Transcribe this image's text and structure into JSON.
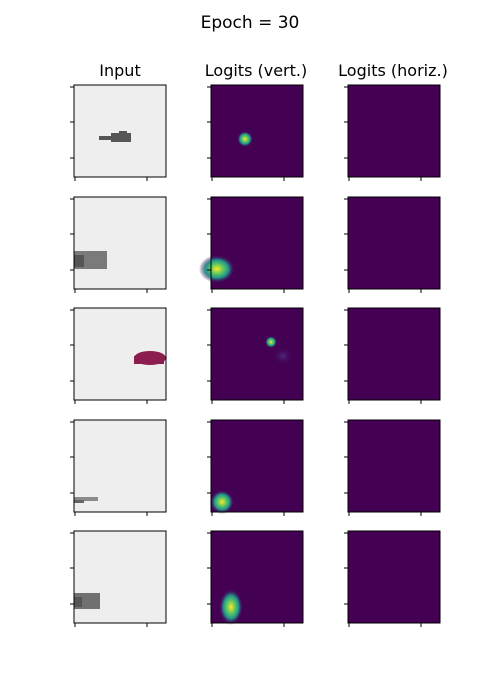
{
  "figure": {
    "title": "Epoch = 30"
  },
  "columns": [
    {
      "title": "Input"
    },
    {
      "title": "Logits (vert.)"
    },
    {
      "title": "Logits (horiz.)"
    }
  ],
  "colors": {
    "input_background": "#eeeeee",
    "logit_background": "#440154",
    "shape_gray": "#555555",
    "shape_gray_light": "#888888",
    "shape_maroon": "#8b1e4f",
    "hot_yellow": "#fde725",
    "hot_green": "#3ab87a",
    "hot_teal": "#21918c",
    "faint_blob": "#4b2d7f",
    "axis": "#000000"
  },
  "chart_data": {
    "type": "heatmap",
    "rows": 5,
    "columns": [
      "Input",
      "Logits (vert.)",
      "Logits (horiz.)"
    ],
    "tick_labels": "none",
    "panels": [
      {
        "row": 1,
        "input": {
          "shape": "small dark gray object",
          "color": "#555555"
        },
        "logits_vert": {
          "hotspot": "small bright spot, upper center-left"
        },
        "logits_horiz": {
          "hotspot": "none"
        }
      },
      {
        "row": 2,
        "input": {
          "shape": "gray block at left edge",
          "color": "#777777"
        },
        "logits_vert": {
          "hotspot": "bright spot at left edge, lower region"
        },
        "logits_horiz": {
          "hotspot": "none"
        }
      },
      {
        "row": 3,
        "input": {
          "shape": "maroon object at right edge",
          "color": "#8b1e4f"
        },
        "logits_vert": {
          "hotspot": "small bright spot upper right with faint blob"
        },
        "logits_horiz": {
          "hotspot": "none"
        }
      },
      {
        "row": 4,
        "input": {
          "shape": "thin gray sliver at bottom left",
          "color": "#777777"
        },
        "logits_vert": {
          "hotspot": "bright spot bottom left"
        },
        "logits_horiz": {
          "hotspot": "none"
        }
      },
      {
        "row": 5,
        "input": {
          "shape": "gray block at lower left edge",
          "color": "#666666"
        },
        "logits_vert": {
          "hotspot": "bright elongated spot lower left"
        },
        "logits_horiz": {
          "hotspot": "none"
        }
      }
    ]
  }
}
